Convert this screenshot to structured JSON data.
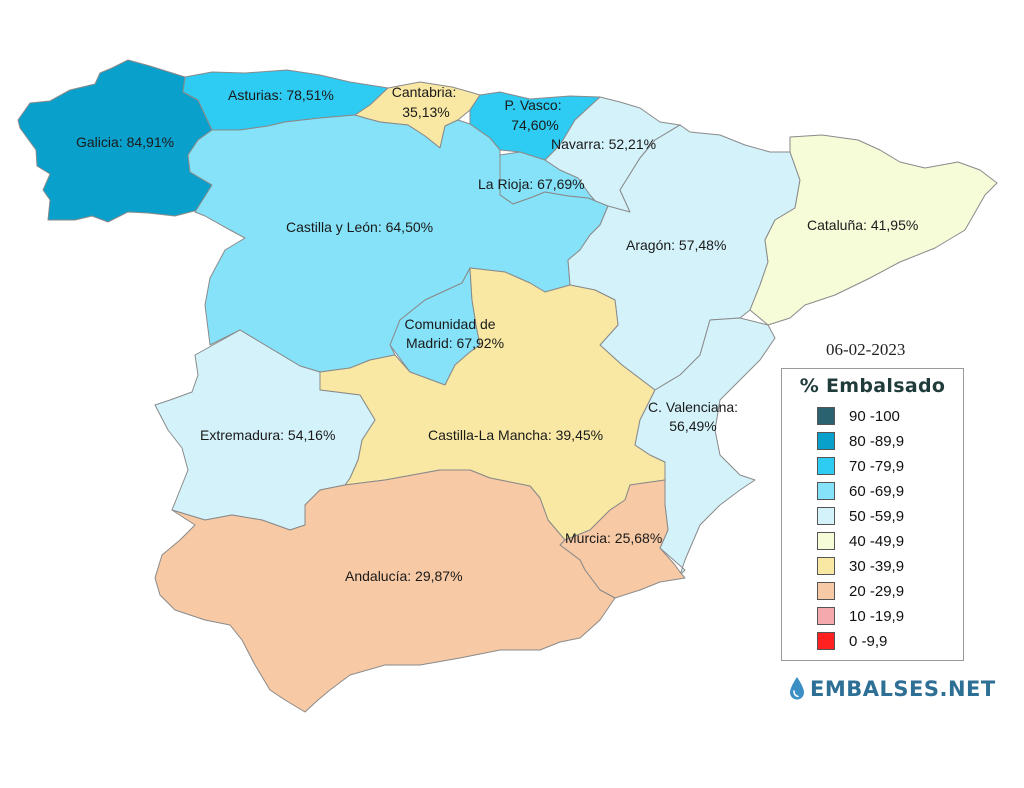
{
  "date": "06-02-2023",
  "legend": {
    "title": "% Embalsado",
    "items": [
      {
        "label": "90 -100",
        "color": "#2a6270"
      },
      {
        "label": "80 -89,9",
        "color": "#0aa0cc"
      },
      {
        "label": "70 -79,9",
        "color": "#2ecbf2"
      },
      {
        "label": "60 -69,9",
        "color": "#85e2f8"
      },
      {
        "label": "50 -59,9",
        "color": "#d3f2fa"
      },
      {
        "label": "40 -49,9",
        "color": "#f6fbd8"
      },
      {
        "label": "30 -39,9",
        "color": "#f8e8a4"
      },
      {
        "label": "20 -29,9",
        "color": "#f7c9a4"
      },
      {
        "label": "10 -19,9",
        "color": "#f5a9ad"
      },
      {
        "label": "0 -9,9",
        "color": "#ff2020"
      }
    ]
  },
  "brand": {
    "name": "EMBALSES.NET",
    "icon": "water-drop-icon"
  },
  "regions": [
    {
      "id": "galicia",
      "label": "Galicia: 84,91%",
      "value": 84.91,
      "color": "#0aa0cc"
    },
    {
      "id": "asturias",
      "label": "Asturias: 78,51%",
      "value": 78.51,
      "color": "#2ecbf2"
    },
    {
      "id": "cantabria",
      "label_lines": [
        "Cantabria:",
        "35,13%"
      ],
      "value": 35.13,
      "color": "#f8e8a4"
    },
    {
      "id": "pvasco",
      "label_lines": [
        "P. Vasco:",
        "74,60%"
      ],
      "value": 74.6,
      "color": "#2ecbf2"
    },
    {
      "id": "navarra",
      "label": "Navarra: 52,21%",
      "value": 52.21,
      "color": "#d3f2fa"
    },
    {
      "id": "larioja",
      "label": "La Rioja: 67,69%",
      "value": 67.69,
      "color": "#85e2f8"
    },
    {
      "id": "castillaleon",
      "label": "Castilla y León: 64,50%",
      "value": 64.5,
      "color": "#85e2f8"
    },
    {
      "id": "aragon",
      "label": "Aragón: 57,48%",
      "value": 57.48,
      "color": "#d3f2fa"
    },
    {
      "id": "cataluna",
      "label": "Cataluña: 41,95%",
      "value": 41.95,
      "color": "#f6fbd8"
    },
    {
      "id": "madrid",
      "label_lines": [
        "Comunidad de",
        "Madrid: 67,92%"
      ],
      "value": 67.92,
      "color": "#85e2f8"
    },
    {
      "id": "extremadura",
      "label": "Extremadura: 54,16%",
      "value": 54.16,
      "color": "#d3f2fa"
    },
    {
      "id": "castillamancha",
      "label": "Castilla-La Mancha: 39,45%",
      "value": 39.45,
      "color": "#f8e8a4"
    },
    {
      "id": "valenciana",
      "label_lines": [
        "C. Valenciana:",
        "56,49%"
      ],
      "value": 56.49,
      "color": "#d3f2fa"
    },
    {
      "id": "murcia",
      "label": "Murcia: 25,68%",
      "value": 25.68,
      "color": "#f7c9a4"
    },
    {
      "id": "andalucia",
      "label": "Andalucía: 29,87%",
      "value": 29.87,
      "color": "#f7c9a4"
    }
  ]
}
